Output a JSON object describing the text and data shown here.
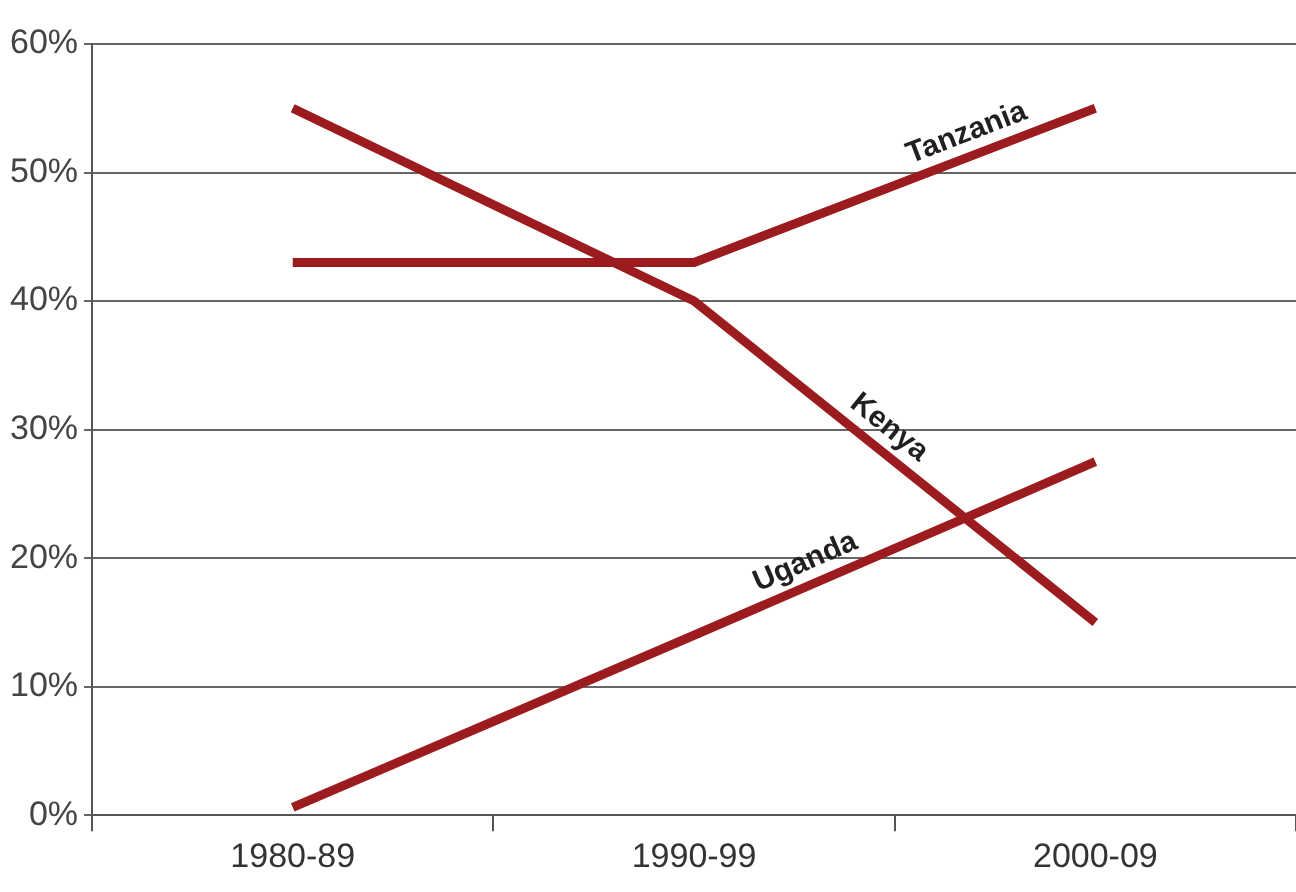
{
  "chart_data": {
    "type": "line",
    "categories": [
      "1980-89",
      "1990-99",
      "2000-09"
    ],
    "series": [
      {
        "name": "Tanzania",
        "color": "#9b1b1e",
        "values": [
          43,
          43,
          55
        ]
      },
      {
        "name": "Kenya",
        "color": "#9b1b1e",
        "values": [
          55,
          40,
          15
        ]
      },
      {
        "name": "Uganda",
        "color": "#9b1b1e",
        "values": [
          0.6,
          14,
          27.5
        ]
      }
    ],
    "ylim": [
      0,
      60
    ],
    "yticks": [
      {
        "value": 0,
        "label": "0%"
      },
      {
        "value": 10,
        "label": "10%"
      },
      {
        "value": 20,
        "label": "20%"
      },
      {
        "value": 30,
        "label": "30%"
      },
      {
        "value": 40,
        "label": "40%"
      },
      {
        "value": 50,
        "label": "50%"
      },
      {
        "value": 60,
        "label": "60%"
      }
    ],
    "grid": "y",
    "legend": false,
    "marker": "none",
    "line_style": "solid"
  }
}
